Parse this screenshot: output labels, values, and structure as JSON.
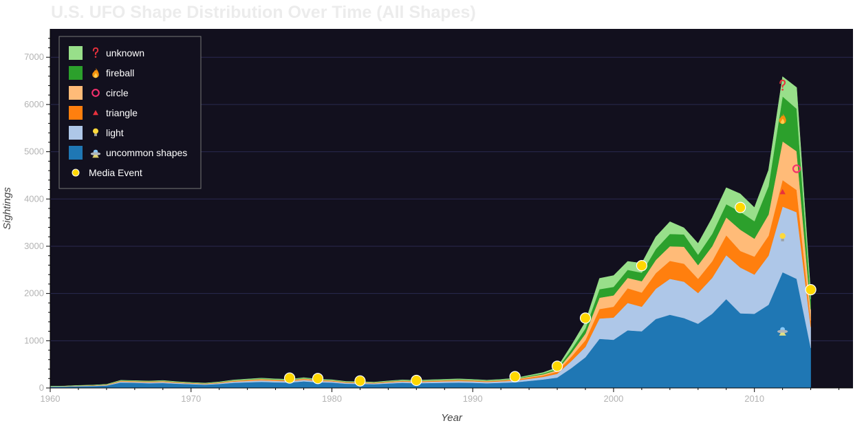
{
  "chart_data": {
    "type": "area",
    "title": "U.S. UFO Shape Distribution Over Time (All Shapes)",
    "xlabel": "Year",
    "ylabel": "Sightings",
    "xlim": [
      1960,
      2017
    ],
    "ylim": [
      0,
      7600
    ],
    "x_ticks": [
      1960,
      1970,
      1980,
      1990,
      2000,
      2010
    ],
    "y_ticks": [
      0,
      1000,
      2000,
      3000,
      4000,
      5000,
      6000,
      7000
    ],
    "grid": true,
    "legend_position": "top-left",
    "stacked": true,
    "colors": {
      "background": "#12101e",
      "grid": "#2a2950",
      "unknown": "#98df8a",
      "fireball": "#2ca02c",
      "circle": "#ffbb78",
      "triangle": "#ff7f0e",
      "light": "#aec7e8",
      "uncommon shapes": "#1f77b4",
      "media_event": "#ffd700"
    },
    "x": [
      1960,
      1961,
      1962,
      1963,
      1964,
      1965,
      1966,
      1967,
      1968,
      1969,
      1970,
      1971,
      1972,
      1973,
      1974,
      1975,
      1976,
      1977,
      1978,
      1979,
      1980,
      1981,
      1982,
      1983,
      1984,
      1985,
      1986,
      1987,
      1988,
      1989,
      1990,
      1991,
      1992,
      1993,
      1994,
      1995,
      1996,
      1997,
      1998,
      1999,
      2000,
      2001,
      2002,
      2003,
      2004,
      2005,
      2006,
      2007,
      2008,
      2009,
      2010,
      2011,
      2012,
      2013,
      2014
    ],
    "series": [
      {
        "name": "uncommon shapes",
        "icon": "ufo-icon",
        "values": [
          25,
          28,
          35,
          40,
          50,
          115,
          110,
          100,
          105,
          90,
          80,
          70,
          85,
          110,
          120,
          130,
          120,
          115,
          140,
          120,
          115,
          90,
          85,
          80,
          95,
          110,
          100,
          105,
          110,
          115,
          110,
          100,
          110,
          120,
          150,
          180,
          220,
          420,
          650,
          1040,
          1020,
          1220,
          1200,
          1460,
          1550,
          1480,
          1360,
          1570,
          1880,
          1580,
          1570,
          1760,
          2450,
          2310,
          850
        ]
      },
      {
        "name": "light",
        "icon": "lightbulb-icon",
        "values": [
          5,
          5,
          8,
          8,
          10,
          20,
          18,
          20,
          22,
          18,
          15,
          14,
          18,
          25,
          28,
          32,
          30,
          28,
          32,
          28,
          25,
          20,
          20,
          18,
          22,
          25,
          25,
          28,
          30,
          32,
          30,
          28,
          30,
          35,
          45,
          55,
          80,
          150,
          220,
          430,
          470,
          580,
          520,
          640,
          760,
          770,
          650,
          760,
          930,
          970,
          830,
          1040,
          1390,
          1410,
          440
        ]
      },
      {
        "name": "triangle",
        "icon": "triangle-icon",
        "values": [
          3,
          3,
          4,
          5,
          6,
          10,
          10,
          10,
          11,
          9,
          8,
          7,
          9,
          12,
          14,
          16,
          15,
          14,
          16,
          14,
          12,
          10,
          10,
          9,
          11,
          12,
          12,
          13,
          14,
          15,
          14,
          13,
          14,
          18,
          24,
          30,
          45,
          90,
          140,
          200,
          230,
          310,
          300,
          330,
          380,
          380,
          300,
          350,
          420,
          350,
          380,
          420,
          560,
          470,
          140
        ]
      },
      {
        "name": "circle",
        "icon": "ring-icon",
        "values": [
          2,
          2,
          3,
          4,
          5,
          8,
          8,
          8,
          9,
          7,
          6,
          6,
          7,
          10,
          12,
          13,
          12,
          11,
          13,
          11,
          10,
          8,
          8,
          7,
          9,
          10,
          10,
          11,
          12,
          12,
          11,
          10,
          11,
          14,
          20,
          24,
          35,
          80,
          140,
          240,
          240,
          220,
          240,
          280,
          310,
          360,
          290,
          320,
          380,
          450,
          380,
          450,
          820,
          820,
          230
        ]
      },
      {
        "name": "fireball",
        "icon": "flame-icon",
        "values": [
          1,
          1,
          2,
          2,
          3,
          5,
          5,
          5,
          6,
          5,
          4,
          4,
          5,
          6,
          8,
          9,
          8,
          7,
          9,
          7,
          6,
          5,
          5,
          5,
          6,
          7,
          7,
          8,
          8,
          9,
          8,
          7,
          8,
          10,
          14,
          18,
          25,
          70,
          110,
          180,
          180,
          170,
          180,
          230,
          260,
          260,
          220,
          260,
          280,
          380,
          370,
          600,
          950,
          900,
          220
        ]
      },
      {
        "name": "unknown",
        "icon": "question-icon",
        "values": [
          2,
          2,
          3,
          3,
          4,
          5,
          5,
          5,
          6,
          5,
          4,
          4,
          5,
          7,
          8,
          9,
          8,
          8,
          9,
          8,
          7,
          6,
          6,
          5,
          7,
          8,
          8,
          9,
          10,
          10,
          9,
          8,
          9,
          11,
          15,
          20,
          30,
          90,
          140,
          230,
          240,
          180,
          200,
          260,
          260,
          140,
          240,
          340,
          350,
          380,
          290,
          340,
          420,
          450,
          120
        ]
      }
    ],
    "media_events": {
      "name": "Media Event",
      "points": [
        [
          1977,
          210
        ],
        [
          1979,
          200
        ],
        [
          1982,
          150
        ],
        [
          1986,
          160
        ],
        [
          1993,
          240
        ],
        [
          1996,
          460
        ],
        [
          1998,
          1480
        ],
        [
          2002,
          2590
        ],
        [
          2009,
          3820
        ],
        [
          2014,
          2080
        ]
      ]
    },
    "series_markers": [
      {
        "series": "uncommon shapes",
        "x": 2012,
        "y": 1220,
        "icon": "ufo-icon"
      },
      {
        "series": "light",
        "x": 2012,
        "y": 3180,
        "icon": "lightbulb-icon"
      },
      {
        "series": "triangle",
        "x": 2012,
        "y": 4150,
        "icon": "triangle-icon"
      },
      {
        "series": "circle",
        "x": 2013,
        "y": 4640,
        "icon": "ring-icon"
      },
      {
        "series": "fireball",
        "x": 2012,
        "y": 5700,
        "icon": "flame-icon"
      },
      {
        "series": "unknown",
        "x": 2012,
        "y": 6400,
        "icon": "question-icon"
      }
    ]
  },
  "legend": {
    "items": [
      {
        "label": "unknown",
        "icon": "question-icon"
      },
      {
        "label": "fireball",
        "icon": "flame-icon"
      },
      {
        "label": "circle",
        "icon": "ring-icon"
      },
      {
        "label": "triangle",
        "icon": "triangle-icon"
      },
      {
        "label": "light",
        "icon": "lightbulb-icon"
      },
      {
        "label": "uncommon shapes",
        "icon": "ufo-icon"
      },
      {
        "label": "Media Event",
        "icon": "media-dot-icon"
      }
    ]
  }
}
